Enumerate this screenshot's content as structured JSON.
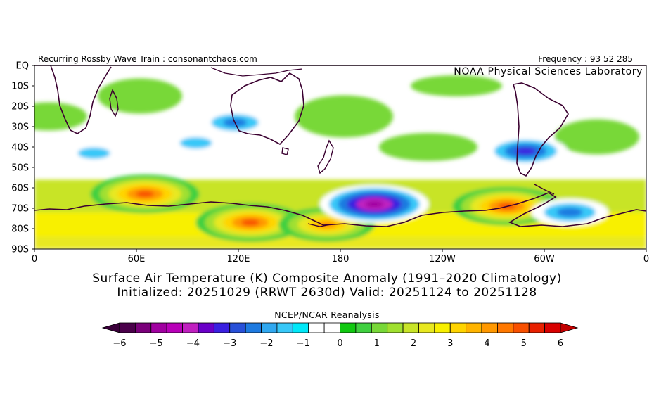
{
  "header": {
    "left_text": "Recurring Rossby Wave Train : consonantchaos.com",
    "right_text": "Frequency : 93 52 285",
    "lab_label": "NOAA Physical Sciences Laboratory"
  },
  "chart_data": {
    "type": "heatmap",
    "title_line_1": "Surface Air Temperature (K) Composite Anomaly (1991–2020 Climatology)",
    "title_line_2": "Initialized: 20251029 (RRWT 2630d) Valid: 20251124 to 20251128",
    "xlabel": "",
    "ylabel": "",
    "x_ticks": [
      {
        "lon": 0,
        "label": "0"
      },
      {
        "lon": 60,
        "label": "60E"
      },
      {
        "lon": 120,
        "label": "120E"
      },
      {
        "lon": 180,
        "label": "180"
      },
      {
        "lon": 240,
        "label": "120W"
      },
      {
        "lon": 300,
        "label": "60W"
      },
      {
        "lon": 360,
        "label": "0"
      }
    ],
    "y_ticks": [
      {
        "lat": 0,
        "label": "EQ"
      },
      {
        "lat": -10,
        "label": "10S"
      },
      {
        "lat": -20,
        "label": "20S"
      },
      {
        "lat": -30,
        "label": "30S"
      },
      {
        "lat": -40,
        "label": "40S"
      },
      {
        "lat": -50,
        "label": "50S"
      },
      {
        "lat": -60,
        "label": "60S"
      },
      {
        "lat": -70,
        "label": "70S"
      },
      {
        "lat": -80,
        "label": "80S"
      },
      {
        "lat": -90,
        "label": "90S"
      }
    ],
    "xlim": [
      0,
      360
    ],
    "ylim": [
      -90,
      0
    ],
    "anomaly_features": [
      {
        "name": "warm-band-60e",
        "lon": 65,
        "lat": -63,
        "value": 5.5
      },
      {
        "name": "warm-antarctic-120e",
        "lon": 127,
        "lat": -77,
        "value": 5.5
      },
      {
        "name": "warm-ross-sea",
        "lon": 172,
        "lat": -78,
        "value": 4.5
      },
      {
        "name": "cold-pacific-sector",
        "lon": 200,
        "lat": -68,
        "value": -5.5
      },
      {
        "name": "warm-amundsen-sea",
        "lon": 278,
        "lat": -69,
        "value": 5.5
      },
      {
        "name": "cold-weddell-sea",
        "lon": 315,
        "lat": -72,
        "value": -3.0
      },
      {
        "name": "cold-south-indian-ocean",
        "lon": 35,
        "lat": -43,
        "value": -2.0
      },
      {
        "name": "cold-indian-ocean-90e",
        "lon": 95,
        "lat": -38,
        "value": -2.0
      },
      {
        "name": "cold-western-australia",
        "lon": 118,
        "lat": -28,
        "value": -2.5
      },
      {
        "name": "cold-patagonia",
        "lon": 289,
        "lat": -42,
        "value": -3.5
      }
    ],
    "colorbar": {
      "title": "NCEP/NCAR Reanalysis",
      "ticks": [
        "−6",
        "−5",
        "−4",
        "−3",
        "−2",
        "−1",
        "0",
        "1",
        "2",
        "3",
        "4",
        "5",
        "6"
      ],
      "colors": [
        "#4a004a",
        "#7a007a",
        "#a000a0",
        "#b800b8",
        "#c020c0",
        "#6a00c8",
        "#3a20e0",
        "#2850d8",
        "#1e7ae0",
        "#30a8f0",
        "#38c8f8",
        "#00e8f8",
        "#ffffff",
        "#ffffff",
        "#10c810",
        "#40d040",
        "#78d838",
        "#a0e030",
        "#c8e428",
        "#e8e820",
        "#f8f000",
        "#ffd400",
        "#ffb400",
        "#ff9800",
        "#ff7800",
        "#f85000",
        "#e82000",
        "#d80000"
      ],
      "under_color": "#3a003a",
      "over_color": "#c00000"
    }
  }
}
